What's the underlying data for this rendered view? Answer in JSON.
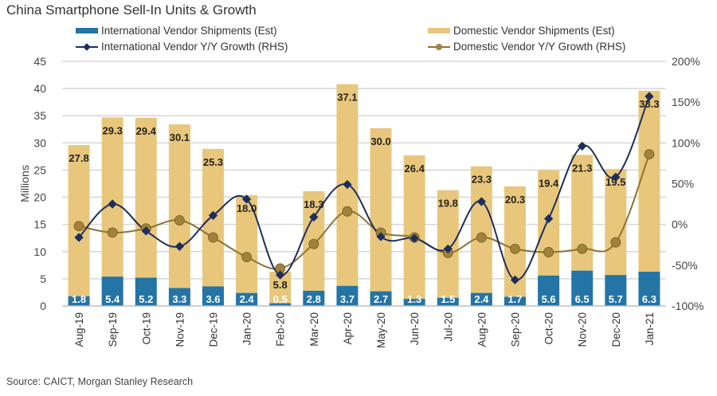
{
  "title": "China Smartphone Sell-In Units & Growth",
  "source": "Source: CAICT, Morgan Stanley Research",
  "colors": {
    "international_bar": "#2474a6",
    "domestic_bar": "#e8c77c",
    "international_line": "#1c2e5c",
    "domestic_line": "#8f7232",
    "domestic_marker": "#a0823a",
    "grid": "#d6d6d6"
  },
  "legend": [
    {
      "label": "International Vendor Shipments (Est)",
      "kind": "bar",
      "series": "international_shipments"
    },
    {
      "label": "Domestic Vendor Shipments (Est)",
      "kind": "bar",
      "series": "domestic_shipments"
    },
    {
      "label": "International Vendor Y/Y Growth (RHS)",
      "kind": "line-diamond",
      "series": "international_growth"
    },
    {
      "label": "Domestic Vendor Y/Y Growth (RHS)",
      "kind": "line-circle",
      "series": "domestic_growth"
    }
  ],
  "chart_data": {
    "type": "bar",
    "stacked": true,
    "title": "China Smartphone Sell-In Units & Growth",
    "xlabel": "",
    "ylabel": "Millions",
    "ylim": [
      0,
      45
    ],
    "yticks": [
      0,
      5,
      10,
      15,
      20,
      25,
      30,
      35,
      40,
      45
    ],
    "y2label": "",
    "y2lim": [
      -100,
      200
    ],
    "y2ticks": [
      "-100%",
      "-50%",
      "0%",
      "50%",
      "100%",
      "150%",
      "200%"
    ],
    "y2tick_values": [
      -100,
      -50,
      0,
      50,
      100,
      150,
      200
    ],
    "grid": true,
    "legend_position": "top",
    "categories": [
      "Aug-19",
      "Sep-19",
      "Oct-19",
      "Nov-19",
      "Dec-19",
      "Jan-20",
      "Feb-20",
      "Mar-20",
      "Apr-20",
      "May-20",
      "Jun-20",
      "Jul-20",
      "Aug-20",
      "Sep-20",
      "Oct-20",
      "Nov-20",
      "Dec-20",
      "Jan-21"
    ],
    "series": [
      {
        "name": "International Vendor Shipments (Est)",
        "type": "bar",
        "axis": "left",
        "values": [
          1.8,
          5.4,
          5.2,
          3.3,
          3.6,
          2.4,
          0.5,
          2.8,
          3.7,
          2.7,
          1.3,
          1.5,
          2.4,
          1.7,
          5.6,
          6.5,
          5.7,
          6.3
        ],
        "labels": [
          "1.8",
          "5.4",
          "5.2",
          "3.3",
          "3.6",
          "2.4",
          "0.5",
          "2.8",
          "3.7",
          "2.7",
          "1.3",
          "1.5",
          "2.4",
          "1.7",
          "5.6",
          "6.5",
          "5.7",
          "6.3"
        ]
      },
      {
        "name": "Domestic Vendor Shipments (Est)",
        "type": "bar",
        "axis": "left",
        "values": [
          27.8,
          29.3,
          29.4,
          30.1,
          25.3,
          18.0,
          5.8,
          18.3,
          37.1,
          30.0,
          26.4,
          19.8,
          23.3,
          20.3,
          19.4,
          21.3,
          19.5,
          33.3
        ],
        "labels": [
          "27.8",
          "29.3",
          "29.4",
          "30.1",
          "25.3",
          "18.0",
          "5.8",
          "18.3",
          "37.1",
          "30.0",
          "26.4",
          "19.8",
          "23.3",
          "20.3",
          "19.4",
          "21.3",
          "19.5",
          "33.3"
        ]
      },
      {
        "name": "International Vendor Y/Y Growth (RHS)",
        "type": "line",
        "axis": "right",
        "unit": "%",
        "values": [
          -16,
          25,
          -8,
          -27,
          11,
          31,
          -62,
          9,
          49,
          -15,
          -17,
          -30,
          28,
          -68,
          7,
          96,
          58,
          157
        ]
      },
      {
        "name": "Domestic Vendor Y/Y Growth (RHS)",
        "type": "line",
        "axis": "right",
        "unit": "%",
        "values": [
          -2,
          -10,
          -5,
          5,
          -16,
          -40,
          -54,
          -24,
          16,
          -10,
          -16,
          -35,
          -16,
          -30,
          -34,
          -30,
          -22,
          86
        ]
      }
    ]
  }
}
